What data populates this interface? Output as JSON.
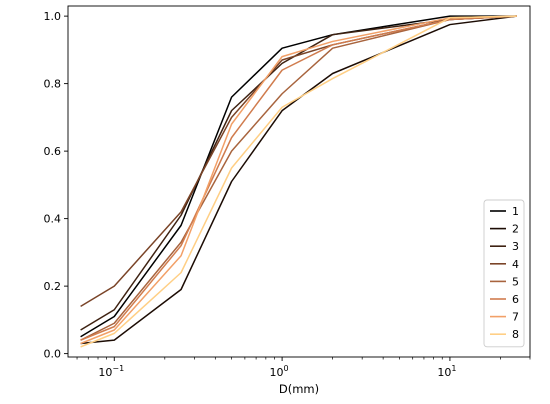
{
  "chart_data": {
    "type": "line",
    "xscale": "log",
    "xlabel": "D(mm)",
    "ylabel": "",
    "title": "",
    "xlim": [
      0.053,
      30
    ],
    "ylim": [
      -0.01,
      1.03
    ],
    "xticks": [
      {
        "value": 0.1,
        "base": "10",
        "exp": "−1"
      },
      {
        "value": 1,
        "base": "10",
        "exp": "0"
      },
      {
        "value": 10,
        "base": "10",
        "exp": "1"
      }
    ],
    "yticks": [
      "0.0",
      "0.2",
      "0.4",
      "0.6",
      "0.8",
      "1.0"
    ],
    "grid": false,
    "legend_position": "lower-right",
    "x": [
      0.063,
      0.1,
      0.25,
      0.5,
      1,
      2,
      10,
      25
    ],
    "series": [
      {
        "name": "1",
        "color": "#000000",
        "values": [
          0.05,
          0.11,
          0.38,
          0.76,
          0.905,
          0.945,
          1.0,
          1.0
        ]
      },
      {
        "name": "2",
        "color": "#1c0c04",
        "values": [
          0.03,
          0.04,
          0.19,
          0.51,
          0.72,
          0.83,
          0.975,
          1.0
        ]
      },
      {
        "name": "3",
        "color": "#3e2212",
        "values": [
          0.07,
          0.13,
          0.41,
          0.72,
          0.86,
          0.945,
          0.99,
          1.0
        ]
      },
      {
        "name": "4",
        "color": "#7a4428",
        "values": [
          0.14,
          0.2,
          0.42,
          0.7,
          0.87,
          0.915,
          0.99,
          1.0
        ]
      },
      {
        "name": "5",
        "color": "#a8643e",
        "values": [
          0.04,
          0.09,
          0.33,
          0.6,
          0.77,
          0.905,
          0.99,
          1.0
        ]
      },
      {
        "name": "6",
        "color": "#d07c4e",
        "values": [
          0.04,
          0.08,
          0.32,
          0.64,
          0.84,
          0.915,
          0.99,
          1.0
        ]
      },
      {
        "name": "7",
        "color": "#f2a068",
        "values": [
          0.03,
          0.07,
          0.29,
          0.68,
          0.88,
          0.925,
          0.995,
          1.0
        ]
      },
      {
        "name": "8",
        "color": "#ffcf85",
        "values": [
          0.02,
          0.06,
          0.24,
          0.55,
          0.73,
          0.815,
          0.995,
          1.0
        ]
      }
    ]
  }
}
